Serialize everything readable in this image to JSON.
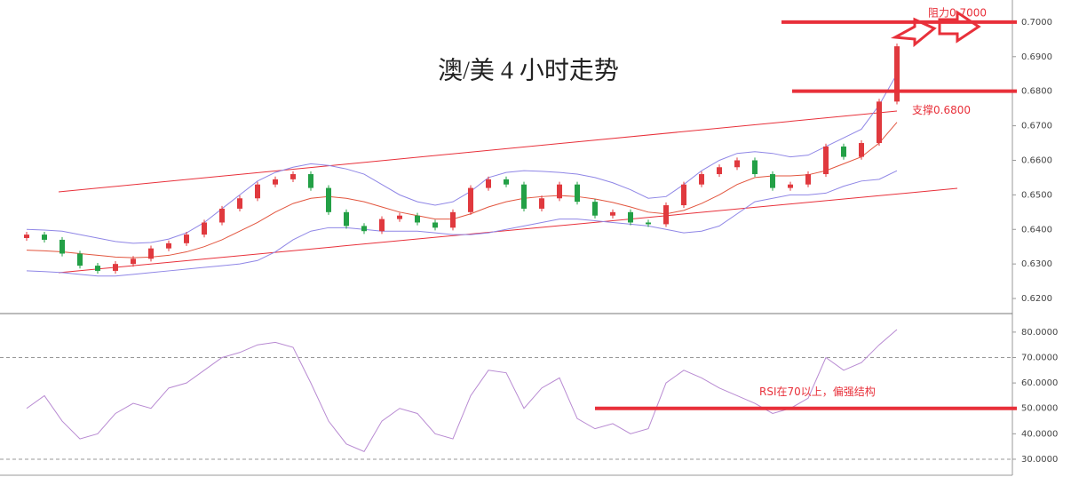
{
  "chart_data": [
    {
      "type": "candlestick",
      "title": "澳/美 4 小时走势",
      "open": [
        0.6375,
        0.6385,
        0.637,
        0.633,
        0.6295,
        0.628,
        0.63,
        0.6315,
        0.6345,
        0.636,
        0.6385,
        0.642,
        0.646,
        0.649,
        0.653,
        0.6545,
        0.656,
        0.652,
        0.645,
        0.641,
        0.6395,
        0.643,
        0.644,
        0.642,
        0.6405,
        0.645,
        0.652,
        0.6545,
        0.653,
        0.646,
        0.649,
        0.653,
        0.648,
        0.644,
        0.645,
        0.642,
        0.6415,
        0.647,
        0.653,
        0.656,
        0.658,
        0.66,
        0.656,
        0.652,
        0.653,
        0.656,
        0.664,
        0.661,
        0.665,
        0.677
      ],
      "high": [
        0.6393,
        0.6393,
        0.6378,
        0.6338,
        0.6303,
        0.6308,
        0.6323,
        0.6353,
        0.6368,
        0.6393,
        0.6428,
        0.6468,
        0.6498,
        0.6538,
        0.6553,
        0.6568,
        0.6568,
        0.6528,
        0.6458,
        0.6418,
        0.6438,
        0.6448,
        0.6448,
        0.6428,
        0.6458,
        0.6528,
        0.6553,
        0.6553,
        0.6538,
        0.6498,
        0.6538,
        0.6538,
        0.6488,
        0.6458,
        0.6458,
        0.6428,
        0.6478,
        0.6538,
        0.6568,
        0.6588,
        0.6608,
        0.6608,
        0.6568,
        0.6538,
        0.6568,
        0.6648,
        0.6648,
        0.6658,
        0.6778,
        0.6938
      ],
      "low": [
        0.6367,
        0.6362,
        0.6322,
        0.6287,
        0.6272,
        0.6272,
        0.6292,
        0.6307,
        0.6337,
        0.6352,
        0.6377,
        0.6412,
        0.6452,
        0.6482,
        0.6522,
        0.6537,
        0.6512,
        0.6442,
        0.6402,
        0.6387,
        0.6387,
        0.6422,
        0.6412,
        0.6397,
        0.6397,
        0.6442,
        0.6512,
        0.6522,
        0.6452,
        0.6452,
        0.6482,
        0.6472,
        0.6432,
        0.6432,
        0.6412,
        0.6407,
        0.6407,
        0.6462,
        0.6522,
        0.6552,
        0.6572,
        0.6552,
        0.6512,
        0.6512,
        0.6522,
        0.6552,
        0.6602,
        0.6602,
        0.6642,
        0.6762
      ],
      "close": [
        0.6385,
        0.637,
        0.633,
        0.6295,
        0.628,
        0.63,
        0.6315,
        0.6345,
        0.636,
        0.6385,
        0.642,
        0.646,
        0.649,
        0.653,
        0.6545,
        0.656,
        0.652,
        0.645,
        0.641,
        0.6395,
        0.643,
        0.644,
        0.642,
        0.6405,
        0.645,
        0.652,
        0.6545,
        0.653,
        0.646,
        0.649,
        0.653,
        0.648,
        0.644,
        0.645,
        0.642,
        0.6415,
        0.647,
        0.653,
        0.656,
        0.658,
        0.66,
        0.656,
        0.652,
        0.653,
        0.656,
        0.664,
        0.661,
        0.665,
        0.677,
        0.693
      ],
      "up_color": "#e0393e",
      "down_color": "#23a046",
      "lines": [
        {
          "color": "#8f86e6",
          "values": [
            0.64,
            0.6398,
            0.6395,
            0.6385,
            0.6375,
            0.6365,
            0.636,
            0.6362,
            0.6372,
            0.639,
            0.642,
            0.646,
            0.65,
            0.654,
            0.6565,
            0.658,
            0.659,
            0.6585,
            0.6575,
            0.656,
            0.653,
            0.65,
            0.648,
            0.647,
            0.648,
            0.651,
            0.655,
            0.6565,
            0.657,
            0.6568,
            0.6565,
            0.656,
            0.655,
            0.6535,
            0.6515,
            0.649,
            0.6495,
            0.653,
            0.657,
            0.66,
            0.662,
            0.6625,
            0.662,
            0.661,
            0.6615,
            0.664,
            0.6665,
            0.669,
            0.676,
            0.685
          ]
        },
        {
          "color": "#e2553e",
          "values": [
            0.634,
            0.6338,
            0.6335,
            0.633,
            0.6325,
            0.632,
            0.6318,
            0.632,
            0.6325,
            0.6335,
            0.635,
            0.637,
            0.6395,
            0.642,
            0.645,
            0.6475,
            0.649,
            0.6495,
            0.649,
            0.648,
            0.6465,
            0.645,
            0.644,
            0.643,
            0.643,
            0.6445,
            0.6465,
            0.648,
            0.649,
            0.6495,
            0.6498,
            0.6495,
            0.6488,
            0.6478,
            0.6465,
            0.645,
            0.6445,
            0.6455,
            0.6475,
            0.65,
            0.653,
            0.655,
            0.6555,
            0.6555,
            0.6558,
            0.657,
            0.659,
            0.661,
            0.665,
            0.671
          ]
        },
        {
          "color": "#8f86e6",
          "values": [
            0.628,
            0.6278,
            0.6275,
            0.627,
            0.6265,
            0.6265,
            0.627,
            0.6275,
            0.628,
            0.6285,
            0.629,
            0.6295,
            0.63,
            0.631,
            0.6335,
            0.637,
            0.6395,
            0.6405,
            0.6405,
            0.64,
            0.6395,
            0.6395,
            0.6395,
            0.639,
            0.6385,
            0.6385,
            0.639,
            0.64,
            0.641,
            0.642,
            0.643,
            0.643,
            0.6425,
            0.642,
            0.6415,
            0.641,
            0.64,
            0.639,
            0.6395,
            0.641,
            0.6445,
            0.648,
            0.649,
            0.65,
            0.65,
            0.6505,
            0.6525,
            0.654,
            0.6545,
            0.657
          ]
        }
      ],
      "levels": [
        {
          "value": 0.7,
          "text": "阻力0.7000"
        },
        {
          "value": 0.68,
          "text": "支撑0.6800"
        }
      ],
      "level_color": "#e8303a",
      "ylim": [
        0.6159,
        0.7064
      ],
      "yticks": [
        {
          "value": 0.62,
          "label": "0.6200"
        },
        {
          "value": 0.63,
          "label": "0.6300"
        },
        {
          "value": 0.64,
          "label": "0.6400"
        },
        {
          "value": 0.65,
          "label": "0.6500"
        },
        {
          "value": 0.66,
          "label": "0.6600"
        },
        {
          "value": 0.67,
          "label": "0.6700"
        },
        {
          "value": 0.68,
          "label": "0.6800"
        },
        {
          "value": 0.69,
          "label": "0.6900"
        },
        {
          "value": 0.7,
          "label": "0.7000"
        }
      ]
    },
    {
      "type": "line",
      "color": "#b88ad2",
      "values": [
        50,
        55,
        45,
        38,
        40,
        48,
        52,
        50,
        58,
        60,
        65,
        70,
        72,
        75,
        76,
        74,
        60,
        45,
        36,
        33,
        45,
        50,
        48,
        40,
        38,
        55,
        65,
        64,
        50,
        58,
        62,
        46,
        42,
        44,
        40,
        42,
        60,
        65,
        62,
        58,
        55,
        52,
        48,
        50,
        54,
        70,
        65,
        68,
        75,
        81
      ],
      "levels": [
        {
          "value": 50,
          "text": "RSI在70以上，偏强结构"
        }
      ],
      "level_color": "#e8303a",
      "dashed_levels": [
        30,
        70
      ],
      "ylim": [
        23.7,
        86.6
      ],
      "yticks": [
        {
          "value": 30,
          "label": "30.0000"
        },
        {
          "value": 40,
          "label": "40.0000"
        },
        {
          "value": 50,
          "label": "50.0000"
        },
        {
          "value": 60,
          "label": "60.0000"
        },
        {
          "value": 70,
          "label": "70.0000"
        },
        {
          "value": 80,
          "label": "80.0000"
        }
      ]
    }
  ]
}
